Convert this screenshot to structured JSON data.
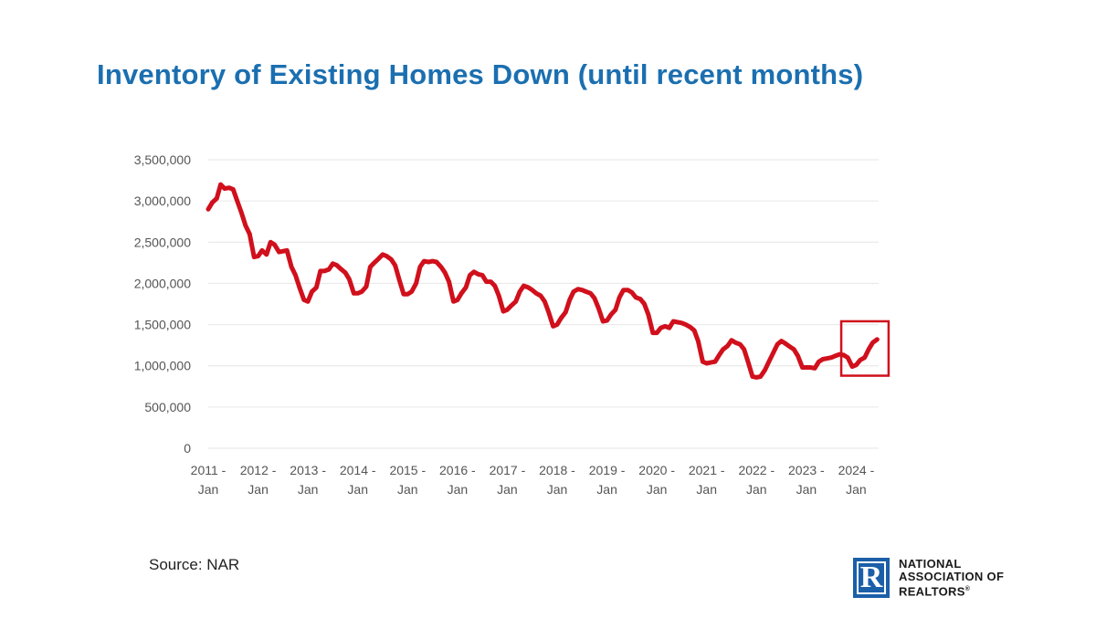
{
  "title": "Inventory of Existing Homes Down (until recent months)",
  "source": "Source: NAR",
  "logo": {
    "icon": "realtor-r-icon",
    "line1": "NATIONAL",
    "line2": "ASSOCIATION OF",
    "line3": "REALTORS",
    "registered": "®"
  },
  "colors": {
    "title": "#1b6fb0",
    "line": "#d0101c",
    "highlight_box": "#d0101c",
    "logo_blue": "#1b5fa8",
    "logo_text": "#1a1a1a",
    "axis_text": "#555555",
    "grid": "#e6e6e6"
  },
  "chart_data": {
    "type": "line",
    "title": "Inventory of Existing Homes Down (until recent months)",
    "xlabel": "",
    "ylabel": "",
    "ylim": [
      0,
      3500000
    ],
    "y_ticks": [
      {
        "value": 0,
        "label": "0"
      },
      {
        "value": 500000,
        "label": "500,000"
      },
      {
        "value": 1000000,
        "label": "1,000,000"
      },
      {
        "value": 1500000,
        "label": "1,500,000"
      },
      {
        "value": 2000000,
        "label": "2,000,000"
      },
      {
        "value": 2500000,
        "label": "2,500,000"
      },
      {
        "value": 3000000,
        "label": "3,000,000"
      },
      {
        "value": 3500000,
        "label": "3,500,000"
      }
    ],
    "x_ticks": [
      {
        "value": 2011.0,
        "line1": "2011 -",
        "line2": "Jan"
      },
      {
        "value": 2012.0,
        "line1": "2012 -",
        "line2": "Jan"
      },
      {
        "value": 2013.0,
        "line1": "2013 -",
        "line2": "Jan"
      },
      {
        "value": 2014.0,
        "line1": "2014 -",
        "line2": "Jan"
      },
      {
        "value": 2015.0,
        "line1": "2015 -",
        "line2": "Jan"
      },
      {
        "value": 2016.0,
        "line1": "2016 -",
        "line2": "Jan"
      },
      {
        "value": 2017.0,
        "line1": "2017 -",
        "line2": "Jan"
      },
      {
        "value": 2018.0,
        "line1": "2018 -",
        "line2": "Jan"
      },
      {
        "value": 2019.0,
        "line1": "2019 -",
        "line2": "Jan"
      },
      {
        "value": 2020.0,
        "line1": "2020 -",
        "line2": "Jan"
      },
      {
        "value": 2021.0,
        "line1": "2021 -",
        "line2": "Jan"
      },
      {
        "value": 2022.0,
        "line1": "2022 -",
        "line2": "Jan"
      },
      {
        "value": 2023.0,
        "line1": "2023 -",
        "line2": "Jan"
      },
      {
        "value": 2024.0,
        "line1": "2024 -",
        "line2": "Jan"
      }
    ],
    "xlim": [
      2011.0,
      2024.45
    ],
    "grid": true,
    "series": [
      {
        "name": "",
        "x": [
          2011.0,
          2011.08,
          2011.17,
          2011.25,
          2011.33,
          2011.42,
          2011.5,
          2011.58,
          2011.67,
          2011.75,
          2011.83,
          2011.92,
          2012.0,
          2012.08,
          2012.17,
          2012.25,
          2012.33,
          2012.42,
          2012.5,
          2012.58,
          2012.67,
          2012.75,
          2012.83,
          2012.92,
          2013.0,
          2013.08,
          2013.17,
          2013.25,
          2013.33,
          2013.42,
          2013.5,
          2013.58,
          2013.67,
          2013.75,
          2013.83,
          2013.92,
          2014.0,
          2014.08,
          2014.17,
          2014.25,
          2014.33,
          2014.42,
          2014.5,
          2014.58,
          2014.67,
          2014.75,
          2014.83,
          2014.92,
          2015.0,
          2015.08,
          2015.17,
          2015.25,
          2015.33,
          2015.42,
          2015.5,
          2015.58,
          2015.67,
          2015.75,
          2015.83,
          2015.92,
          2016.0,
          2016.08,
          2016.17,
          2016.25,
          2016.33,
          2016.42,
          2016.5,
          2016.58,
          2016.67,
          2016.75,
          2016.83,
          2016.92,
          2017.0,
          2017.08,
          2017.17,
          2017.25,
          2017.33,
          2017.42,
          2017.5,
          2017.58,
          2017.67,
          2017.75,
          2017.83,
          2017.92,
          2018.0,
          2018.08,
          2018.17,
          2018.25,
          2018.33,
          2018.42,
          2018.5,
          2018.58,
          2018.67,
          2018.75,
          2018.83,
          2018.92,
          2019.0,
          2019.08,
          2019.17,
          2019.25,
          2019.33,
          2019.42,
          2019.5,
          2019.58,
          2019.67,
          2019.75,
          2019.83,
          2019.92,
          2020.0,
          2020.08,
          2020.17,
          2020.25,
          2020.33,
          2020.42,
          2020.5,
          2020.58,
          2020.67,
          2020.75,
          2020.83,
          2020.92,
          2021.0,
          2021.08,
          2021.17,
          2021.25,
          2021.33,
          2021.42,
          2021.5,
          2021.58,
          2021.67,
          2021.75,
          2021.83,
          2021.92,
          2022.0,
          2022.08,
          2022.17,
          2022.25,
          2022.33,
          2022.42,
          2022.5,
          2022.58,
          2022.67,
          2022.75,
          2022.83,
          2022.92,
          2023.0,
          2023.08,
          2023.17,
          2023.25,
          2023.33,
          2023.42,
          2023.5,
          2023.58,
          2023.67,
          2023.75,
          2023.83,
          2023.92,
          2024.0,
          2024.08,
          2024.17,
          2024.25,
          2024.33,
          2024.42
        ],
        "values": [
          2900000,
          2980000,
          3030000,
          3200000,
          3150000,
          3160000,
          3140000,
          3000000,
          2850000,
          2700000,
          2600000,
          2320000,
          2330000,
          2400000,
          2350000,
          2500000,
          2470000,
          2380000,
          2390000,
          2400000,
          2200000,
          2100000,
          1950000,
          1800000,
          1780000,
          1900000,
          1950000,
          2150000,
          2150000,
          2170000,
          2240000,
          2220000,
          2170000,
          2130000,
          2050000,
          1880000,
          1880000,
          1900000,
          1960000,
          2200000,
          2250000,
          2300000,
          2350000,
          2330000,
          2290000,
          2220000,
          2050000,
          1870000,
          1870000,
          1900000,
          2000000,
          2200000,
          2270000,
          2260000,
          2270000,
          2260000,
          2200000,
          2130000,
          2020000,
          1780000,
          1800000,
          1880000,
          1950000,
          2100000,
          2140000,
          2110000,
          2100000,
          2020000,
          2020000,
          1970000,
          1850000,
          1660000,
          1680000,
          1730000,
          1780000,
          1900000,
          1970000,
          1950000,
          1920000,
          1880000,
          1850000,
          1780000,
          1650000,
          1480000,
          1500000,
          1580000,
          1650000,
          1800000,
          1900000,
          1930000,
          1920000,
          1900000,
          1880000,
          1820000,
          1700000,
          1540000,
          1550000,
          1620000,
          1680000,
          1830000,
          1920000,
          1920000,
          1890000,
          1830000,
          1810000,
          1750000,
          1620000,
          1400000,
          1400000,
          1460000,
          1480000,
          1460000,
          1540000,
          1530000,
          1520000,
          1500000,
          1470000,
          1430000,
          1300000,
          1050000,
          1030000,
          1040000,
          1050000,
          1130000,
          1200000,
          1240000,
          1310000,
          1280000,
          1260000,
          1200000,
          1050000,
          870000,
          860000,
          870000,
          950000,
          1050000,
          1150000,
          1260000,
          1300000,
          1270000,
          1230000,
          1200000,
          1120000,
          980000,
          980000,
          980000,
          970000,
          1050000,
          1080000,
          1090000,
          1100000,
          1120000,
          1140000,
          1130000,
          1100000,
          990000,
          1010000,
          1070000,
          1100000,
          1200000,
          1280000,
          1320000
        ]
      }
    ],
    "highlight": {
      "x_from": 2023.7,
      "x_to": 2024.65,
      "y_from": 880000,
      "y_to": 1540000
    }
  }
}
